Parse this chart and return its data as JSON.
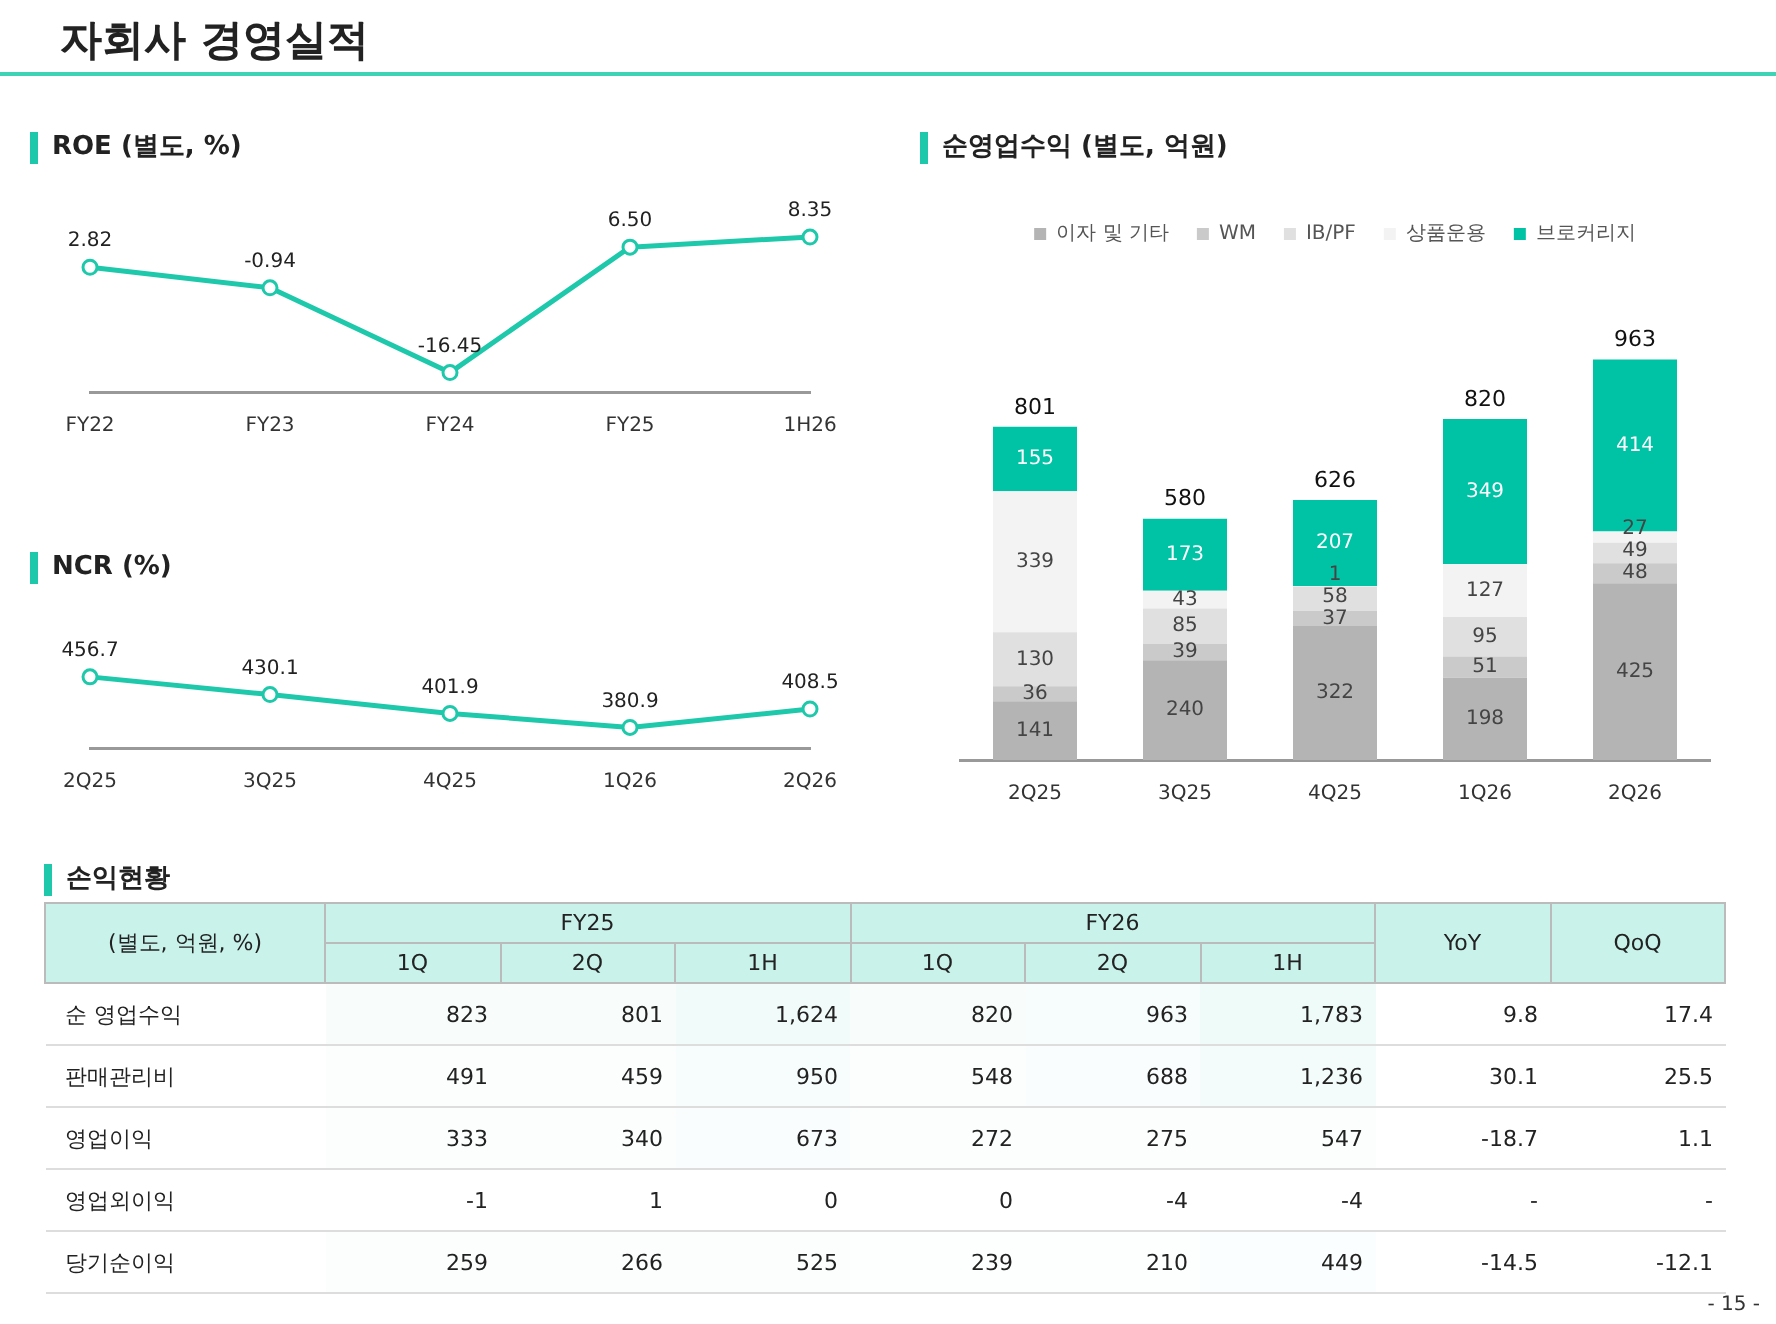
{
  "chart_data": [
    {
      "type": "line",
      "title": "ROE (별도, %)",
      "categories": [
        "FY22",
        "FY23",
        "FY24",
        "FY25",
        "1H26"
      ],
      "series": [
        {
          "color": "#1ec8aa",
          "values": [
            2.82,
            -0.94,
            -16.45,
            6.5,
            8.35
          ],
          "value_labels": [
            "2.82",
            "-0.94",
            "-16.45",
            "6.50",
            "8.35"
          ]
        }
      ],
      "marker": "circle",
      "tick_labels": "x",
      "annotations": [
        "자회사 경영실적",
        "- 15 -"
      ]
    },
    {
      "type": "line",
      "title": "NCR (%)",
      "categories": [
        "2Q25",
        "3Q25",
        "4Q25",
        "1Q26",
        "2Q26"
      ],
      "series": [
        {
          "color": "#1ec8aa",
          "values": [
            456.7,
            430.1,
            401.9,
            380.9,
            408.5
          ],
          "value_labels": [
            "456.7",
            "430.1",
            "401.9",
            "380.9",
            "408.5"
          ]
        }
      ],
      "marker": "circle",
      "tick_labels": "x"
    },
    {
      "type": "bar",
      "title": "순영업수익 (별도, 억원)",
      "categories": [
        "2Q25",
        "3Q25",
        "4Q25",
        "1Q26",
        "2Q26"
      ],
      "stacked": true,
      "data_labels": true,
      "legend": "top",
      "tick_labels": "x",
      "series": [
        {
          "name": "이자 및 기타",
          "color": "#b4b4b4",
          "values": [
            141,
            240,
            322,
            198,
            425
          ]
        },
        {
          "name": "WM",
          "color": "#cacaca",
          "values": [
            36,
            39,
            37,
            51,
            48
          ]
        },
        {
          "name": "IB/PF",
          "color": "#e0e0e0",
          "values": [
            130,
            85,
            58,
            95,
            49
          ]
        },
        {
          "name": "상품운용",
          "color": "#f3f3f3",
          "values": [
            339,
            43,
            1,
            127,
            27
          ]
        },
        {
          "name": "브로커리지",
          "color": "#00c3a6",
          "values": [
            155,
            173,
            207,
            349,
            414
          ]
        }
      ],
      "totals": [
        "801",
        "580",
        "626",
        "820",
        "963"
      ]
    },
    {
      "type": "heatmap",
      "title": "손익현황",
      "ylabel": "(별도, 억원, %)",
      "annotations": [
        "FY25",
        "FY26"
      ],
      "categories": [
        "1Q",
        "2Q",
        "1H",
        "1Q",
        "2Q",
        "1H",
        "YoY",
        "QoQ"
      ],
      "y_categories": [
        "순 영업수익",
        "판매관리비",
        "영업이익",
        "영업외이익",
        "당기순이익"
      ],
      "cells": [
        [
          823,
          801,
          1624,
          820,
          963,
          1783,
          9.8,
          17.4
        ],
        [
          491,
          459,
          950,
          548,
          688,
          1236,
          30.1,
          25.5
        ],
        [
          333,
          340,
          673,
          272,
          275,
          547,
          -18.7,
          1.1
        ],
        [
          -1,
          1,
          0,
          0,
          -4,
          -4,
          null,
          null
        ],
        [
          259,
          266,
          525,
          239,
          210,
          449,
          -14.5,
          -12.1
        ]
      ],
      "cell_labels": [
        [
          "823",
          "801",
          "1,624",
          "820",
          "963",
          "1,783",
          "9.8",
          "17.4"
        ],
        [
          "491",
          "459",
          "950",
          "548",
          "688",
          "1,236",
          "30.1",
          "25.5"
        ],
        [
          "333",
          "340",
          "673",
          "272",
          "275",
          "547",
          "-18.7",
          "1.1"
        ],
        [
          "-1",
          "1",
          "0",
          "0",
          "-4",
          "-4",
          "-",
          "-"
        ],
        [
          "259",
          "266",
          "525",
          "239",
          "210",
          "449",
          "-14.5",
          "-12.1"
        ]
      ]
    }
  ]
}
